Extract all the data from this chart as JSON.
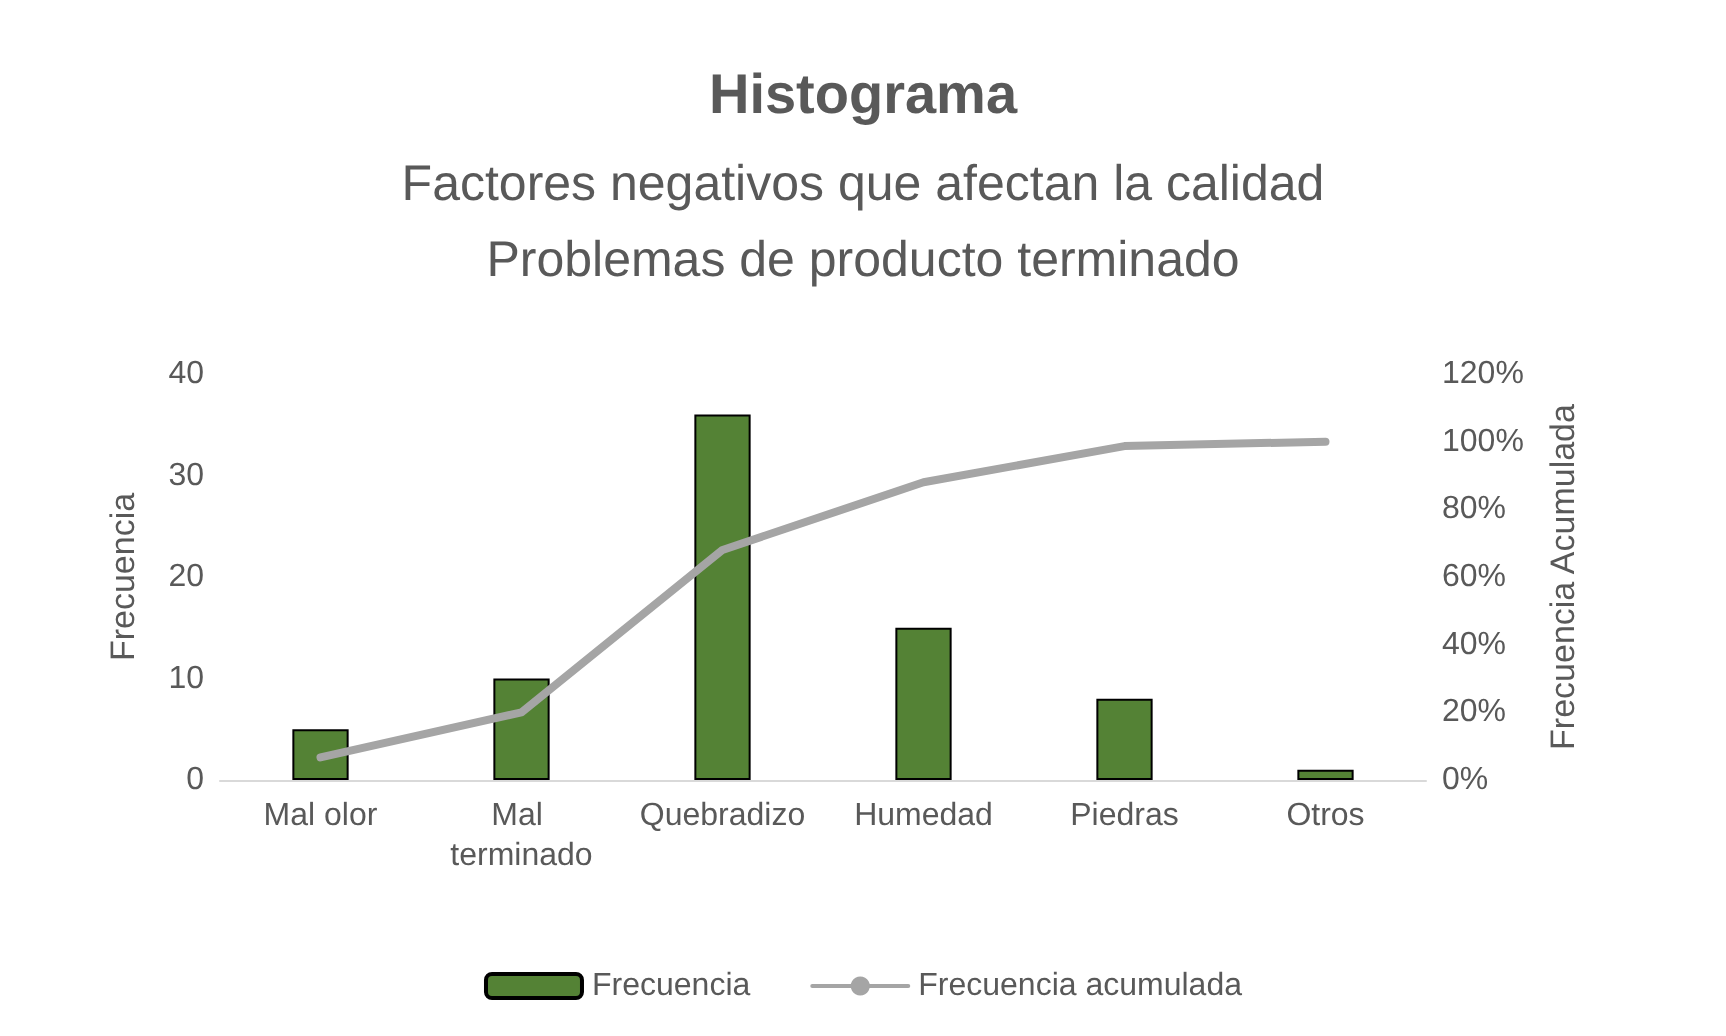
{
  "chart_data": {
    "type": "bar",
    "title": "Histograma",
    "subtitle": "Factores negativos que afectan la calidad\nProblemas de producto terminado",
    "ylabel": "Frecuencia",
    "y2label": "Frecuencia Acumulada",
    "categories": [
      "Mal olor",
      "Mal terminado",
      "Quebradizo",
      "Humedad",
      "Piedras",
      "Otros"
    ],
    "series": [
      {
        "name": "Frecuencia",
        "color": "#548235",
        "values": [
          5,
          10,
          36,
          15,
          8,
          1
        ]
      },
      {
        "name": "Frecuencia acumulada",
        "type": "line",
        "axis": "y2",
        "color": "#a5a5a5",
        "values": [
          6.7,
          20,
          68,
          88,
          98.7,
          100
        ]
      }
    ],
    "ylim": [
      0,
      40
    ],
    "yticks": [
      0,
      10,
      20,
      30,
      40
    ],
    "y2lim": [
      0,
      120
    ],
    "y2ticks": [
      {
        "value": 0,
        "label": "0%"
      },
      {
        "value": 20,
        "label": "20%"
      },
      {
        "value": 40,
        "label": "40%"
      },
      {
        "value": 60,
        "label": "60%"
      },
      {
        "value": 80,
        "label": "80%"
      },
      {
        "value": 100,
        "label": "100%"
      },
      {
        "value": 120,
        "label": "120%"
      }
    ],
    "legend": "bottom",
    "marker": "none",
    "line_style": "solid"
  }
}
